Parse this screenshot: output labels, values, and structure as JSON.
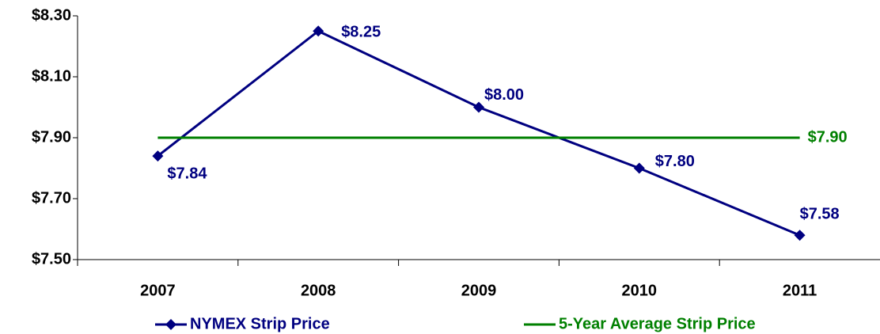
{
  "chart_data": {
    "type": "line",
    "categories": [
      "2007",
      "2008",
      "2009",
      "2010",
      "2011"
    ],
    "series": [
      {
        "name": "NYMEX Strip Price",
        "color": "#000080",
        "values": [
          7.84,
          8.25,
          8.0,
          7.8,
          7.58
        ],
        "value_labels": [
          "$7.84",
          "$8.25",
          "$8.00",
          "$7.80",
          "$7.58"
        ]
      },
      {
        "name": "5-Year Average Strip Price",
        "color": "#008000",
        "values": [
          7.9,
          7.9,
          7.9,
          7.9,
          7.9
        ],
        "value_labels": [
          null,
          null,
          null,
          null,
          "$7.90"
        ]
      }
    ],
    "ylim": [
      7.5,
      8.3
    ],
    "yticks": [
      {
        "value": 7.5,
        "label": "$7.50"
      },
      {
        "value": 7.7,
        "label": "$7.70"
      },
      {
        "value": 7.9,
        "label": "$7.90"
      },
      {
        "value": 8.1,
        "label": "$8.10"
      },
      {
        "value": 8.3,
        "label": "$8.30"
      }
    ],
    "legend": "bottom"
  }
}
